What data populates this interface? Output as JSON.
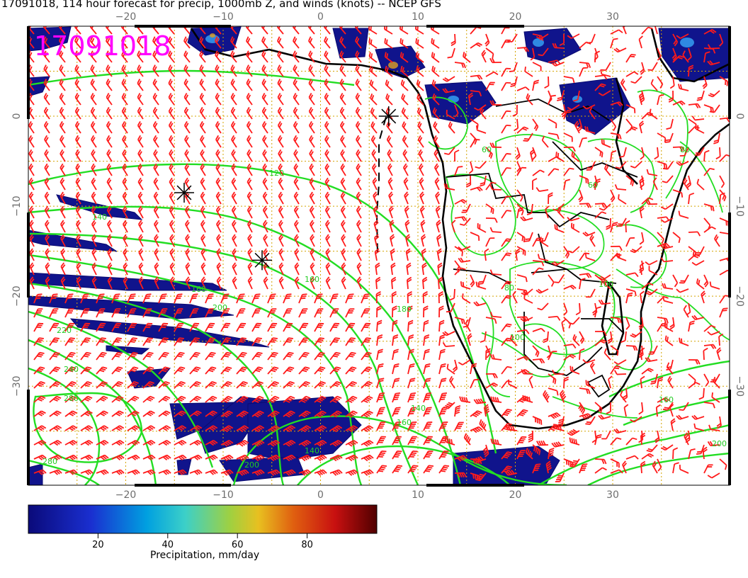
{
  "title": "17091018, 114 hour forecast for precip, 1000mb Z, and winds (knots) -- NCEP GFS",
  "stamp": "17091018",
  "axes": {
    "lon_ticks": [
      "−20",
      "−10",
      "0",
      "10",
      "20",
      "30"
    ],
    "lat_ticks": [
      "0",
      "−10",
      "−20",
      "−30"
    ],
    "lon_range": [
      -30,
      42
    ],
    "lat_range": [
      -41,
      10
    ],
    "grid": true
  },
  "contour_labels": [
    "120",
    "140",
    "160",
    "160",
    "180",
    "200",
    "220",
    "240",
    "280",
    "280",
    "200",
    "140",
    "160",
    "60",
    "60",
    "80",
    "100",
    "140",
    "100",
    "160",
    "200",
    "80"
  ],
  "wind_barbs": {
    "count_approx": 700,
    "color": "#ff1a1a",
    "style": "barbs (knots)"
  },
  "markers": [
    {
      "symbol": "asterisk",
      "lon": -14,
      "lat": -8.5
    },
    {
      "symbol": "asterisk",
      "lon": -6,
      "lat": -16
    },
    {
      "symbol": "asterisk",
      "lon": 7,
      "lat": 0
    }
  ],
  "colorbar": {
    "ticks": [
      "20",
      "40",
      "60",
      "80"
    ],
    "label": "Precipitation, mm/day",
    "range": [
      0,
      100
    ]
  },
  "colors": {
    "contour": "#22dd22",
    "barbs": "#ff1a1a",
    "precip_low": "#00008b",
    "grid": "#d4a400",
    "coast": "#000000",
    "stamp": "#ff00ff"
  }
}
